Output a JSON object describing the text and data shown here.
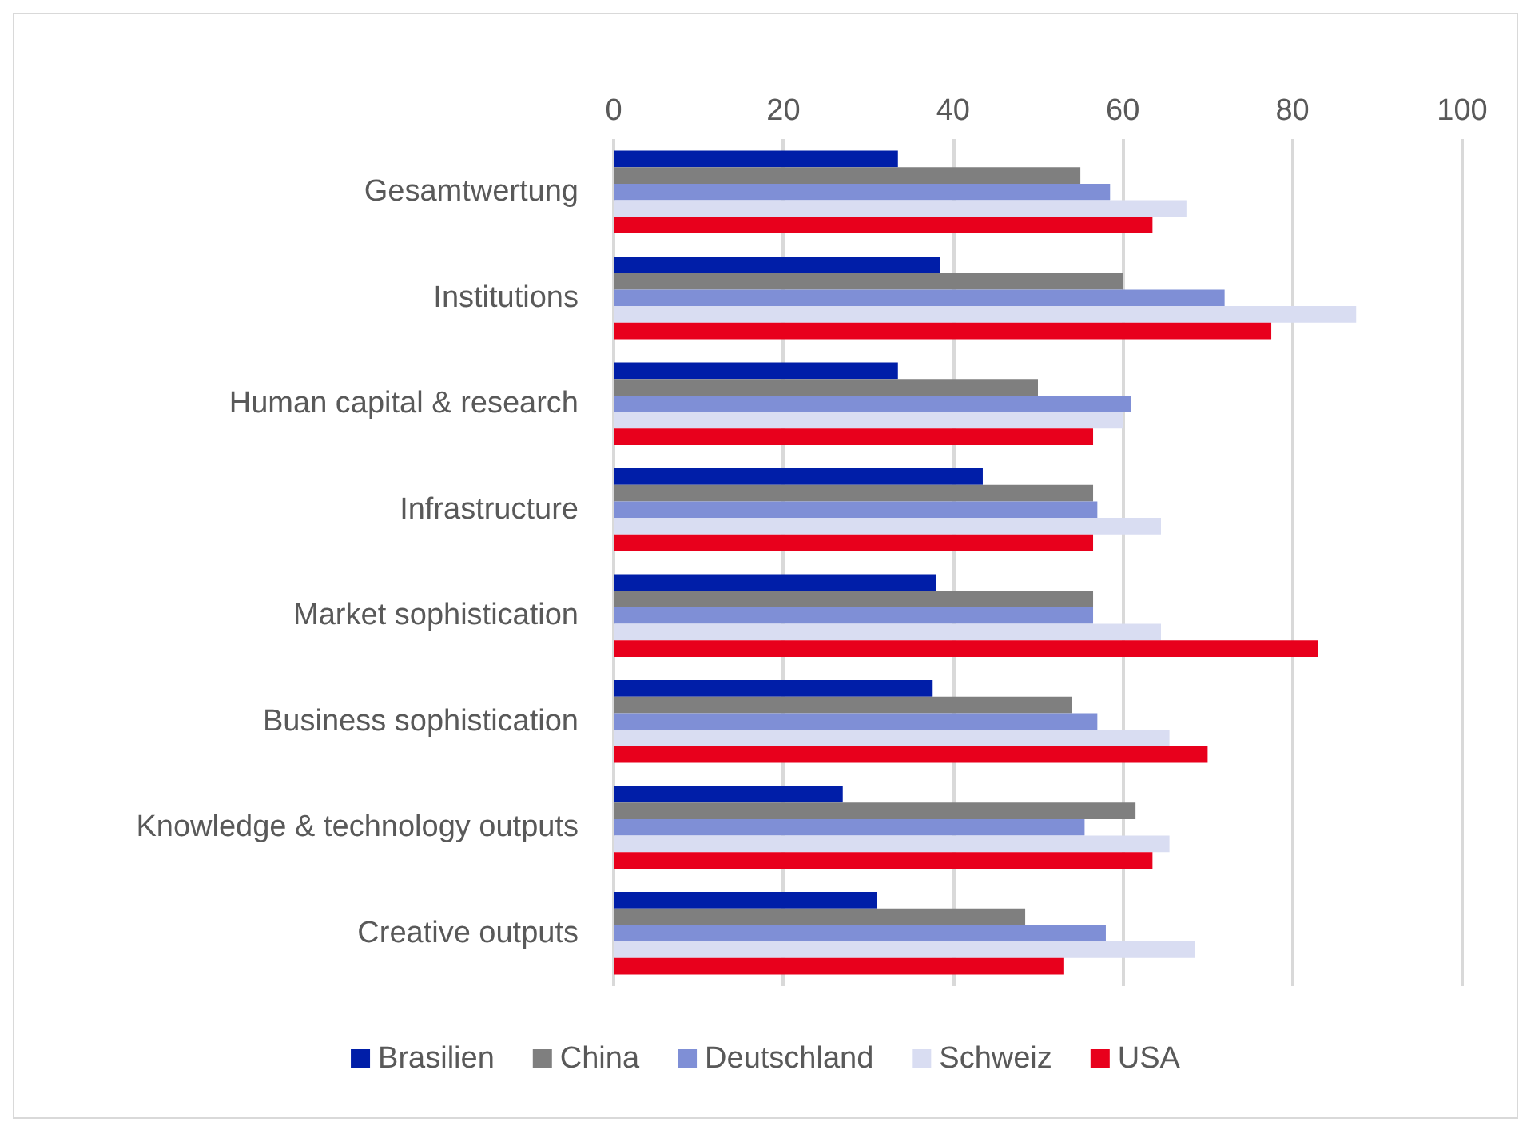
{
  "chart_data": {
    "type": "bar",
    "orientation": "horizontal",
    "categories": [
      "Gesamtwertung",
      "Institutions",
      "Human capital & research",
      "Infrastructure",
      "Market sophistication",
      "Business sophistication",
      "Knowledge & technology outputs",
      "Creative outputs"
    ],
    "series": [
      {
        "name": "Brasilien",
        "color": "#001ea8",
        "values": [
          33.5,
          38.5,
          33.5,
          43.5,
          38,
          37.5,
          27,
          31
        ]
      },
      {
        "name": "China",
        "color": "#7f7f7f",
        "values": [
          55,
          60,
          50,
          56.5,
          56.5,
          54,
          61.5,
          48.5
        ]
      },
      {
        "name": "Deutschland",
        "color": "#7f8fd6",
        "values": [
          58.5,
          72,
          61,
          57,
          56.5,
          57,
          55.5,
          58
        ]
      },
      {
        "name": "Schweiz",
        "color": "#d9ddf2",
        "values": [
          67.5,
          87.5,
          60,
          64.5,
          64.5,
          65.5,
          65.5,
          68.5
        ]
      },
      {
        "name": "USA",
        "color": "#e8001c",
        "values": [
          63.5,
          77.5,
          56.5,
          56.5,
          83,
          70,
          63.5,
          53
        ]
      }
    ],
    "xlim": [
      0,
      100
    ],
    "xticks": [
      0,
      20,
      40,
      60,
      80,
      100
    ],
    "grid": "x",
    "legend": "bottom"
  }
}
